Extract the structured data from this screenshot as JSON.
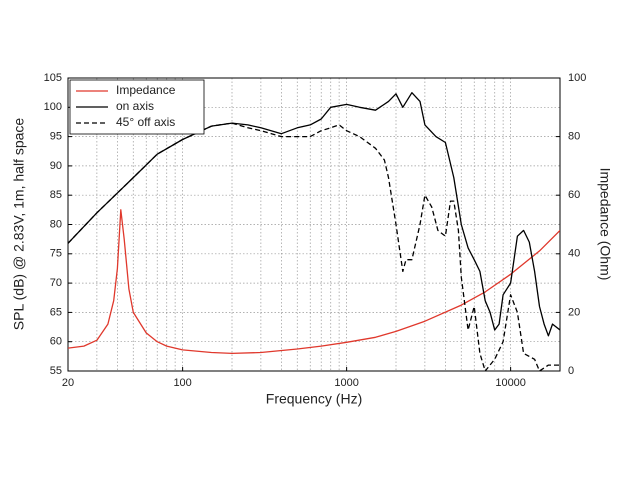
{
  "chart_data": {
    "type": "line",
    "xlabel": "Frequency (Hz)",
    "ylabel": "SPL (dB) @ 2.83V, 1m, half space",
    "y2label": "Impedance (Ohm)",
    "xscale": "log",
    "xlim": [
      20,
      20000
    ],
    "xticks": [
      20,
      100,
      1000,
      10000
    ],
    "xminorticks": [
      30,
      40,
      50,
      60,
      70,
      80,
      90,
      200,
      300,
      400,
      500,
      600,
      700,
      800,
      900,
      2000,
      3000,
      4000,
      5000,
      6000,
      7000,
      8000,
      9000
    ],
    "ylim": [
      55,
      105
    ],
    "yticks": [
      55,
      60,
      65,
      70,
      75,
      80,
      85,
      90,
      95,
      100,
      105
    ],
    "y2lim": [
      0,
      100
    ],
    "y2ticks": [
      0,
      20,
      40,
      60,
      80,
      100
    ],
    "grid": true,
    "legend": "top-left",
    "series": [
      {
        "name": "Impedance",
        "color": "#e0382c",
        "axis": "y2",
        "dash": false,
        "x": [
          20,
          25,
          30,
          35,
          38,
          40,
          42,
          44,
          47,
          50,
          60,
          70,
          80,
          100,
          150,
          200,
          300,
          500,
          700,
          1000,
          1500,
          2000,
          3000,
          5000,
          7000,
          10000,
          15000,
          20000
        ],
        "values": [
          7.8,
          8.5,
          10.5,
          16,
          24,
          35,
          55,
          45,
          28,
          20,
          13,
          10,
          8.5,
          7.2,
          6.3,
          6,
          6.3,
          7.5,
          8.5,
          9.8,
          11.5,
          13.5,
          17,
          22.5,
          27,
          33,
          41,
          48
        ]
      },
      {
        "name": "on axis",
        "color": "#000000",
        "axis": "y",
        "dash": false,
        "x": [
          20,
          30,
          50,
          70,
          100,
          150,
          200,
          250,
          300,
          400,
          500,
          600,
          700,
          800,
          1000,
          1200,
          1500,
          1800,
          2000,
          2200,
          2500,
          2800,
          3000,
          3500,
          4000,
          4500,
          5000,
          5500,
          6000,
          6500,
          7000,
          7500,
          8000,
          8500,
          9000,
          10000,
          11000,
          12000,
          13000,
          14000,
          15000,
          16000,
          17000,
          18000,
          20000
        ],
        "values": [
          76.8,
          82,
          88,
          92,
          94.5,
          96.8,
          97.3,
          97,
          96.5,
          95.5,
          96.5,
          97,
          98,
          100,
          100.5,
          100,
          99.5,
          101,
          102.3,
          100,
          102.5,
          101,
          97,
          95,
          94,
          88,
          80,
          76,
          74,
          72,
          67,
          65,
          62,
          63,
          68,
          70,
          78,
          79,
          77,
          72,
          66,
          63,
          61,
          63,
          62
        ]
      },
      {
        "name": "45° off axis",
        "color": "#000000",
        "axis": "y",
        "dash": true,
        "x": [
          20,
          30,
          50,
          70,
          100,
          150,
          200,
          250,
          300,
          400,
          500,
          600,
          700,
          800,
          900,
          1000,
          1200,
          1500,
          1700,
          1800,
          2000,
          2200,
          2300,
          2500,
          2800,
          3000,
          3300,
          3600,
          4000,
          4300,
          4500,
          4800,
          5000,
          5500,
          6000,
          6500,
          7000,
          8000,
          9000,
          10000,
          11000,
          12000,
          14000,
          15000,
          17000,
          20000
        ],
        "values": [
          76.8,
          82,
          88,
          92,
          94.5,
          96.8,
          97.3,
          96.5,
          96,
          95,
          95,
          95,
          96,
          96.5,
          97,
          96,
          95,
          93,
          91,
          88,
          80,
          72,
          74,
          74,
          80,
          85,
          83,
          79,
          78,
          84,
          84,
          79,
          71,
          62,
          66,
          58,
          55,
          57,
          60,
          68,
          65,
          58,
          57,
          55,
          56,
          56
        ]
      }
    ]
  }
}
